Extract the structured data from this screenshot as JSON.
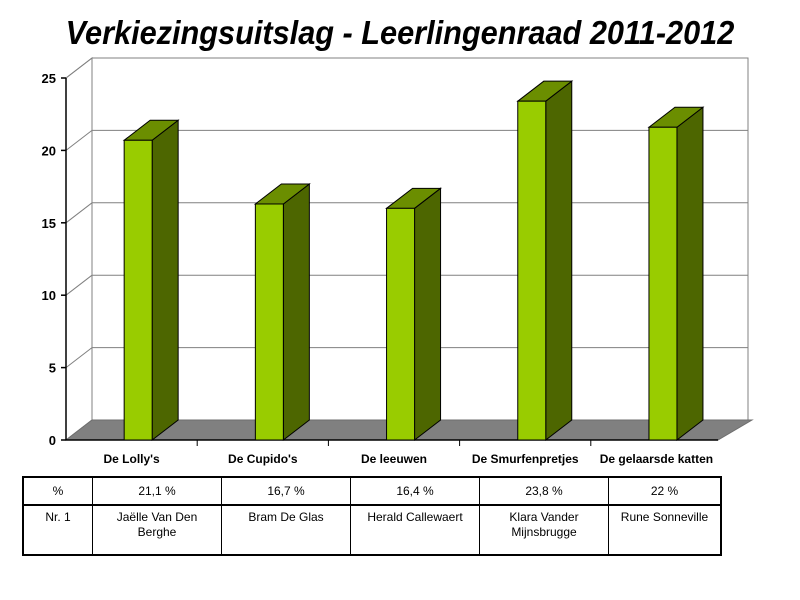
{
  "chart_data": {
    "type": "bar",
    "title": "Verkiezingsuitslag - Leerlingenraad 2011-2012",
    "categories": [
      "De Lolly's",
      "De Cupido's",
      "De leeuwen",
      "De Smurfenpretjes",
      "De gelaarsde katten"
    ],
    "values": [
      20.7,
      16.3,
      16.0,
      23.4,
      21.6
    ],
    "ylim": [
      0,
      25
    ],
    "yticks": [
      0,
      5,
      10,
      15,
      20,
      25
    ],
    "grid": true,
    "xlabel": "",
    "ylabel": "",
    "colors": {
      "bar_front": "#99cc00",
      "bar_top": "#6b8e00",
      "bar_side": "#4d6600",
      "floor": "#808080",
      "grid": "#808080"
    }
  },
  "table": {
    "header_pct": "%",
    "header_nr": "Nr. 1",
    "percentages": [
      "21,1 %",
      "16,7 %",
      "16,4 %",
      "23,8 %",
      "22 %"
    ],
    "candidates": [
      "Jaëlle Van Den Berghe",
      "Bram De Glas",
      "Herald Callewaert",
      "Klara Vander Mijnsbrugge",
      "Rune Sonneville"
    ]
  }
}
